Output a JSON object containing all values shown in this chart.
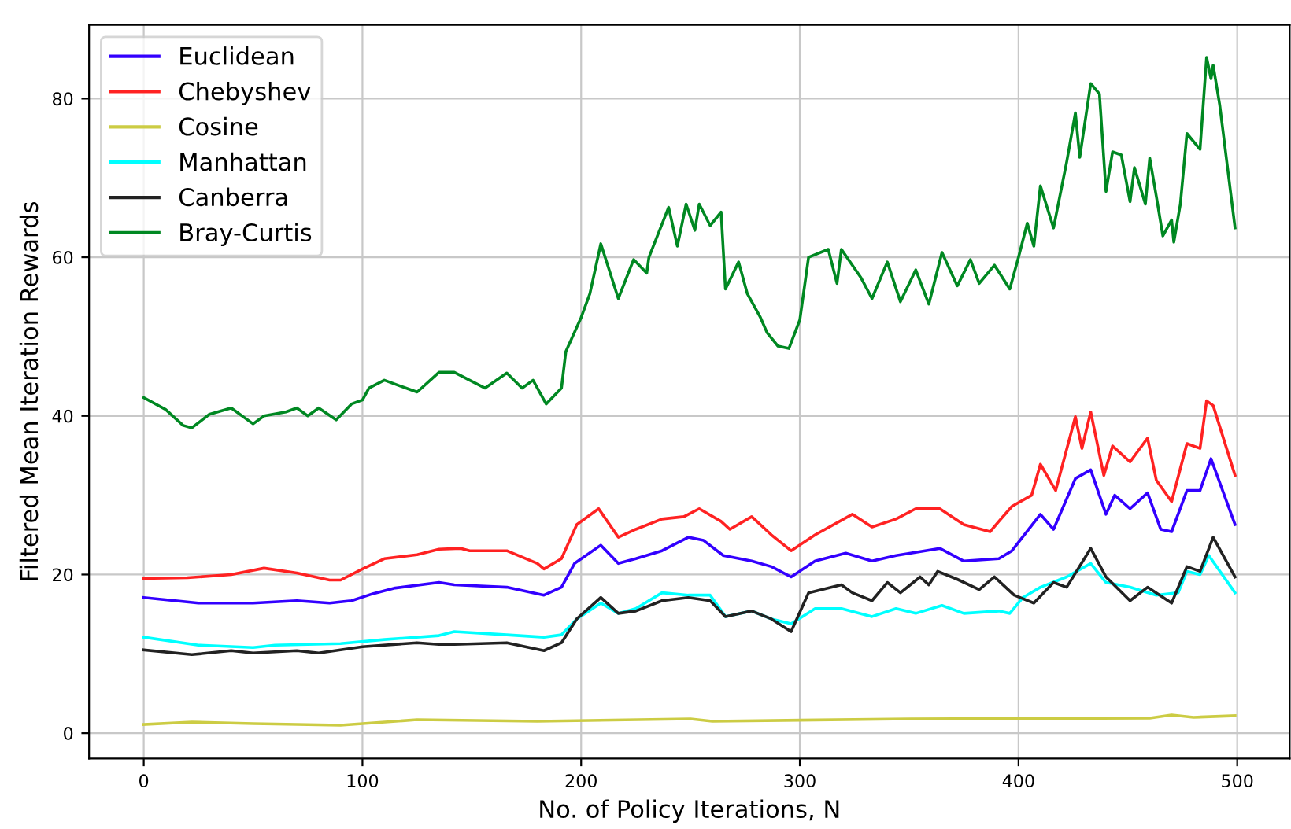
{
  "chart_data": {
    "type": "line",
    "xlabel": "No. of Policy Iterations, N",
    "ylabel": "Filtered Mean Iteration Rewards",
    "xlim": [
      -25,
      524
    ],
    "ylim": [
      -3.2,
      89.3
    ],
    "xticks": [
      0,
      100,
      200,
      300,
      400,
      500
    ],
    "yticks": [
      0,
      20,
      40,
      60,
      80
    ],
    "grid": true,
    "legend": "top left",
    "line_style": "solid",
    "marker": "none",
    "series": [
      {
        "name": "Euclidean",
        "color": "#3300ff",
        "x": [
          0,
          25,
          50,
          70,
          85,
          95,
          105,
          115,
          135,
          142,
          166,
          183,
          191,
          197,
          209,
          217,
          225,
          237,
          249,
          256,
          265,
          278,
          287,
          296,
          307,
          321,
          333,
          344,
          364,
          375,
          391,
          397,
          410,
          416,
          426,
          433,
          440,
          444,
          451,
          459,
          465,
          470,
          477,
          483,
          488,
          499
        ],
        "values": [
          17.1,
          16.4,
          16.4,
          16.7,
          16.4,
          16.7,
          17.6,
          18.3,
          19.0,
          18.7,
          18.4,
          17.4,
          18.4,
          21.4,
          23.7,
          21.4,
          22.0,
          23.0,
          24.7,
          24.3,
          22.4,
          21.7,
          21.0,
          19.7,
          21.7,
          22.7,
          21.7,
          22.4,
          23.3,
          21.7,
          22.0,
          23.0,
          27.6,
          25.7,
          32.1,
          33.2,
          27.6,
          30.0,
          28.3,
          30.3,
          25.7,
          25.4,
          30.6,
          30.6,
          34.6,
          26.3
        ]
      },
      {
        "name": "Chebyshev",
        "color": "#ff2222",
        "x": [
          0,
          20,
          40,
          55,
          70,
          85,
          90,
          100,
          110,
          125,
          135,
          145,
          149,
          166,
          180,
          183,
          191,
          198,
          208,
          217,
          225,
          237,
          247,
          254,
          264,
          268,
          278,
          287,
          296,
          307,
          324,
          333,
          344,
          353,
          364,
          375,
          387,
          391,
          397,
          406,
          410,
          417,
          426,
          429,
          433,
          439,
          443,
          451,
          459,
          463,
          470,
          477,
          483,
          486,
          489,
          499
        ],
        "values": [
          19.5,
          19.6,
          20.0,
          20.8,
          20.2,
          19.3,
          19.3,
          20.7,
          22.0,
          22.5,
          23.2,
          23.3,
          23.0,
          23.0,
          21.4,
          20.7,
          22.0,
          26.3,
          28.3,
          24.7,
          25.7,
          27.0,
          27.3,
          28.3,
          26.7,
          25.7,
          27.3,
          25.0,
          23.0,
          25.0,
          27.6,
          26.0,
          27.0,
          28.3,
          28.3,
          26.3,
          25.4,
          26.7,
          28.6,
          30.0,
          33.9,
          30.6,
          39.9,
          35.9,
          40.5,
          32.5,
          36.2,
          34.2,
          37.2,
          31.9,
          29.2,
          36.5,
          35.9,
          41.9,
          41.3,
          32.5
        ]
      },
      {
        "name": "Cosine",
        "color": "#cccc44",
        "x": [
          0,
          22,
          50,
          90,
          125,
          180,
          250,
          260,
          350,
          460,
          470,
          480,
          499
        ],
        "values": [
          1.1,
          1.4,
          1.2,
          1.0,
          1.7,
          1.5,
          1.8,
          1.5,
          1.8,
          1.9,
          2.3,
          2.0,
          2.2
        ]
      },
      {
        "name": "Manhattan",
        "color": "#00ffff",
        "x": [
          0,
          25,
          50,
          60,
          90,
          110,
          135,
          142,
          166,
          183,
          191,
          198,
          209,
          217,
          225,
          237,
          249,
          259,
          266,
          278,
          287,
          296,
          307,
          319,
          333,
          344,
          353,
          365,
          375,
          391,
          396,
          402,
          410,
          422,
          433,
          440,
          451,
          463,
          473,
          477,
          483,
          487,
          499
        ],
        "values": [
          12.1,
          11.1,
          10.8,
          11.1,
          11.3,
          11.8,
          12.3,
          12.8,
          12.4,
          12.1,
          12.4,
          14.4,
          16.4,
          15.1,
          15.7,
          17.7,
          17.4,
          17.4,
          14.7,
          15.4,
          14.4,
          13.8,
          15.7,
          15.7,
          14.7,
          15.7,
          15.1,
          16.1,
          15.1,
          15.4,
          15.1,
          17.1,
          18.4,
          19.7,
          21.4,
          19.0,
          18.4,
          17.4,
          17.7,
          20.4,
          20.0,
          22.4,
          17.7
        ]
      },
      {
        "name": "Canberra",
        "color": "#222222",
        "x": [
          0,
          22,
          40,
          50,
          70,
          80,
          100,
          125,
          135,
          142,
          166,
          183,
          191,
          198,
          209,
          217,
          225,
          237,
          249,
          259,
          266,
          278,
          287,
          296,
          304,
          319,
          324,
          333,
          340,
          346,
          355,
          359,
          363,
          372,
          382,
          389,
          398,
          407,
          416,
          422,
          433,
          440,
          451,
          459,
          470,
          477,
          483,
          489,
          499
        ],
        "values": [
          10.5,
          9.9,
          10.4,
          10.1,
          10.4,
          10.1,
          10.9,
          11.4,
          11.2,
          11.2,
          11.4,
          10.4,
          11.4,
          14.4,
          17.1,
          15.1,
          15.4,
          16.7,
          17.1,
          16.7,
          14.7,
          15.4,
          14.4,
          12.8,
          17.7,
          18.7,
          17.7,
          16.7,
          19.0,
          17.7,
          19.7,
          18.7,
          20.4,
          19.4,
          18.1,
          19.7,
          17.4,
          16.4,
          19.0,
          18.4,
          23.3,
          19.7,
          16.7,
          18.4,
          16.4,
          21.0,
          20.4,
          24.7,
          19.7
        ]
      },
      {
        "name": "Bray-Curtis",
        "color": "#008822",
        "x": [
          0,
          10,
          18,
          22,
          30,
          40,
          50,
          55,
          65,
          70,
          75,
          80,
          88,
          95,
          100,
          103,
          110,
          120,
          125,
          135,
          142,
          156,
          166,
          173,
          178,
          184,
          191,
          193,
          200,
          204,
          209,
          217,
          224,
          230,
          231,
          240,
          244,
          248,
          252,
          254,
          259,
          264,
          266,
          272,
          276,
          282,
          285,
          290,
          295,
          300,
          304,
          313,
          317,
          319,
          328,
          333,
          340,
          346,
          353,
          359,
          365,
          372,
          378,
          382,
          389,
          396,
          400,
          404,
          407,
          410,
          416,
          422,
          426,
          428,
          433,
          437,
          440,
          443,
          447,
          451,
          453,
          458,
          460,
          463,
          466,
          470,
          471,
          474,
          477,
          483,
          486,
          488,
          489,
          492,
          499
        ],
        "values": [
          42.3,
          40.8,
          38.8,
          38.5,
          40.2,
          41.0,
          39.0,
          40.0,
          40.5,
          41.0,
          40.0,
          41.0,
          39.5,
          41.5,
          42.0,
          43.5,
          44.5,
          43.5,
          43.0,
          45.5,
          45.5,
          43.5,
          45.4,
          43.5,
          44.5,
          41.5,
          43.5,
          48.1,
          52.4,
          55.4,
          61.7,
          54.8,
          59.7,
          58.0,
          60.0,
          66.3,
          61.4,
          66.7,
          63.4,
          66.7,
          64.0,
          65.7,
          56.0,
          59.4,
          55.4,
          52.4,
          50.5,
          48.8,
          48.5,
          52.1,
          60.0,
          61.0,
          56.7,
          61.0,
          57.4,
          54.8,
          59.4,
          54.4,
          58.4,
          54.1,
          60.6,
          56.4,
          59.7,
          56.7,
          59.0,
          56.0,
          60.0,
          64.3,
          61.4,
          69.0,
          63.7,
          72.0,
          78.2,
          72.6,
          81.9,
          80.6,
          68.3,
          73.3,
          72.9,
          67.0,
          71.3,
          66.7,
          72.5,
          67.7,
          62.7,
          64.7,
          61.9,
          66.7,
          75.6,
          73.6,
          85.2,
          82.5,
          84.2,
          79.2,
          63.7
        ]
      }
    ]
  }
}
